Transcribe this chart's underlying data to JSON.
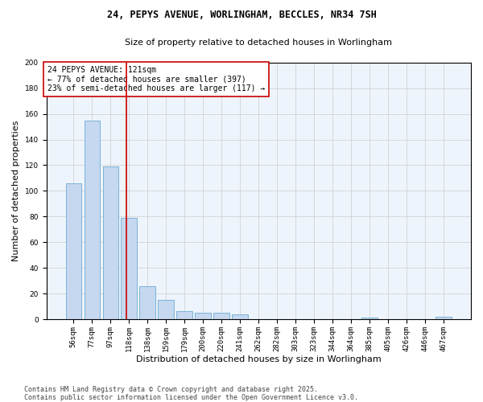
{
  "title_line1": "24, PEPYS AVENUE, WORLINGHAM, BECCLES, NR34 7SH",
  "title_line2": "Size of property relative to detached houses in Worlingham",
  "xlabel": "Distribution of detached houses by size in Worlingham",
  "ylabel": "Number of detached properties",
  "categories": [
    "56sqm",
    "77sqm",
    "97sqm",
    "118sqm",
    "138sqm",
    "159sqm",
    "179sqm",
    "200sqm",
    "220sqm",
    "241sqm",
    "262sqm",
    "282sqm",
    "303sqm",
    "323sqm",
    "344sqm",
    "364sqm",
    "385sqm",
    "405sqm",
    "426sqm",
    "446sqm",
    "467sqm"
  ],
  "values": [
    106,
    155,
    119,
    79,
    26,
    15,
    6,
    5,
    5,
    4,
    0,
    0,
    0,
    0,
    0,
    0,
    1,
    0,
    0,
    0,
    2
  ],
  "bar_color": "#c5d8f0",
  "bar_edge_color": "#7ab3d8",
  "vline_color": "#cc0000",
  "vline_x": 2.87,
  "annotation_text": "24 PEPYS AVENUE: 121sqm\n← 77% of detached houses are smaller (397)\n23% of semi-detached houses are larger (117) →",
  "annotation_box_color": "#ffffff",
  "annotation_box_edge_color": "#cc0000",
  "ylim": [
    0,
    200
  ],
  "yticks": [
    0,
    20,
    40,
    60,
    80,
    100,
    120,
    140,
    160,
    180,
    200
  ],
  "grid_color": "#cccccc",
  "background_color": "#eef4fb",
  "footer_text": "Contains HM Land Registry data © Crown copyright and database right 2025.\nContains public sector information licensed under the Open Government Licence v3.0.",
  "title_fontsize": 8.5,
  "subtitle_fontsize": 8,
  "axis_label_fontsize": 8,
  "tick_fontsize": 6.5,
  "annotation_fontsize": 7,
  "footer_fontsize": 6
}
